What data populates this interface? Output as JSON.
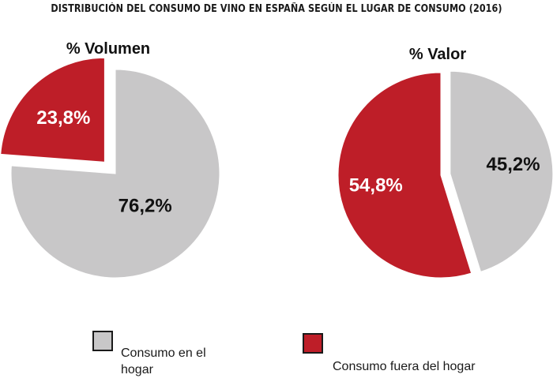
{
  "title": "DISTRIBUCIÓN DEL CONSUMO DE VINO EN ESPAÑA SEGÚN EL LUGAR DE CONSUMO (2016)",
  "colors": {
    "hogar": "#c8c7c8",
    "fuera": "#be1e28"
  },
  "legend": [
    {
      "label": "Consumo en el hogar",
      "color": "#c8c7c8"
    },
    {
      "label": "Consumo fuera del hogar",
      "color": "#be1e28"
    }
  ],
  "chart_data": [
    {
      "type": "pie",
      "title": "% Volumen",
      "slices": [
        {
          "name": "Consumo fuera del hogar",
          "value": 23.8,
          "label": "23,8%",
          "color": "#be1e28",
          "exploded": true
        },
        {
          "name": "Consumo en el hogar",
          "value": 76.2,
          "label": "76,2%",
          "color": "#c8c7c8",
          "exploded": false
        }
      ]
    },
    {
      "type": "pie",
      "title": "% Valor",
      "slices": [
        {
          "name": "Consumo en el hogar",
          "value": 45.2,
          "label": "45,2%",
          "color": "#c8c7c8",
          "exploded": true
        },
        {
          "name": "Consumo fuera del hogar",
          "value": 54.8,
          "label": "54,8%",
          "color": "#be1e28",
          "exploded": false
        }
      ]
    }
  ]
}
